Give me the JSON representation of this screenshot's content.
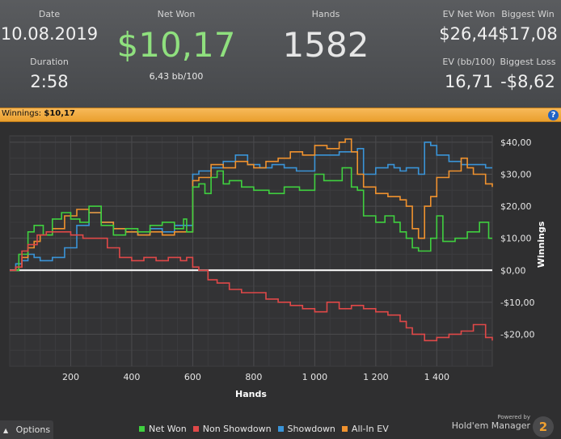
{
  "header": {
    "date_label": "Date",
    "date_value": "10.08.2019",
    "duration_label": "Duration",
    "duration_value": "2:58",
    "net_won_label": "Net Won",
    "net_won_value": "$10,17",
    "net_won_rate": "6,43 bb/100",
    "hands_label": "Hands",
    "hands_value": "1582",
    "ev_net_won_label": "EV Net Won",
    "ev_net_won_value": "$26,44",
    "biggest_win_label": "Biggest Win",
    "biggest_win_value": "$17,08",
    "ev_bb_label": "EV (bb/100)",
    "ev_bb_value": "16,71",
    "biggest_loss_label": "Biggest Loss",
    "biggest_loss_value": "-$8,62"
  },
  "winnings_bar": {
    "label": "Winnings:",
    "value": "$10,17",
    "help_icon": "?"
  },
  "footer": {
    "options_label": "Options",
    "options_icon": "chevron-up-icon",
    "powered_by": "Powered by",
    "brand": "Hold'em Manager",
    "logo_text": "2"
  },
  "colors": {
    "net_won": "#3fd03f",
    "non_showdown": "#e04848",
    "showdown": "#3a94d8",
    "all_in_ev": "#f0922e",
    "net_won_text": "#8fe07e",
    "zero_line": "#ffffff"
  },
  "chart_data": {
    "type": "line",
    "xlabel": "Hands",
    "ylabel": "Winnings",
    "xlim": [
      0,
      1582
    ],
    "ylim": [
      -30,
      42
    ],
    "xticks": [
      200,
      400,
      600,
      800,
      1000,
      1200,
      1400
    ],
    "xtick_labels": [
      "200",
      "400",
      "600",
      "800",
      "1 000",
      "1 200",
      "1 400"
    ],
    "yticks": [
      40,
      30,
      20,
      10,
      0,
      -10,
      -20
    ],
    "ytick_labels": [
      "$40,00",
      "$30,00",
      "$20,00",
      "$10,00",
      "$0,00",
      "-$10,00",
      "-$20,00"
    ],
    "grid": true,
    "legend_position": "bottom",
    "series": [
      {
        "name": "Net Won",
        "x": [
          0,
          30,
          60,
          80,
          110,
          140,
          170,
          200,
          230,
          260,
          300,
          340,
          380,
          420,
          460,
          500,
          540,
          570,
          580,
          600,
          620,
          640,
          660,
          680,
          700,
          720,
          760,
          800,
          850,
          900,
          950,
          1000,
          1030,
          1060,
          1090,
          1120,
          1140,
          1160,
          1200,
          1230,
          1260,
          1280,
          1300,
          1320,
          1340,
          1360,
          1380,
          1400,
          1420,
          1460,
          1500,
          1540,
          1570,
          1582
        ],
        "y": [
          0,
          5,
          12,
          14,
          11,
          16,
          18,
          16,
          15,
          20,
          14,
          11,
          13,
          12,
          14,
          15,
          13,
          16,
          12,
          26,
          27,
          24,
          29,
          31,
          27,
          28,
          26,
          25,
          24,
          26,
          25,
          30,
          28,
          28,
          32,
          26,
          25,
          17,
          15,
          17,
          15,
          12,
          10,
          7,
          6,
          6,
          10,
          17,
          9,
          10,
          12,
          15,
          10,
          10
        ]
      },
      {
        "name": "Non Showdown",
        "x": [
          0,
          20,
          40,
          60,
          90,
          120,
          160,
          200,
          240,
          280,
          320,
          360,
          400,
          440,
          480,
          520,
          560,
          580,
          600,
          620,
          650,
          680,
          720,
          760,
          800,
          840,
          880,
          920,
          960,
          1000,
          1040,
          1080,
          1120,
          1160,
          1200,
          1240,
          1280,
          1300,
          1320,
          1360,
          1400,
          1440,
          1480,
          1500,
          1520,
          1560,
          1582
        ],
        "y": [
          0,
          1,
          6,
          8,
          11,
          12,
          12,
          11,
          10,
          10,
          7,
          4,
          3,
          4,
          3,
          4,
          3,
          4,
          1,
          0,
          -3,
          -4,
          -6,
          -7,
          -7,
          -9,
          -10,
          -11,
          -12,
          -13,
          -10,
          -12,
          -11,
          -12,
          -13,
          -14,
          -16,
          -18,
          -20,
          -22,
          -21,
          -20,
          -19,
          -19,
          -17,
          -21,
          -22
        ]
      },
      {
        "name": "Showdown",
        "x": [
          0,
          20,
          40,
          60,
          80,
          100,
          140,
          180,
          220,
          260,
          300,
          340,
          380,
          420,
          460,
          500,
          540,
          580,
          600,
          620,
          660,
          700,
          740,
          780,
          820,
          860,
          900,
          940,
          980,
          1000,
          1040,
          1080,
          1120,
          1140,
          1160,
          1200,
          1240,
          1260,
          1280,
          1300,
          1320,
          1340,
          1360,
          1380,
          1400,
          1440,
          1480,
          1520,
          1560,
          1582
        ],
        "y": [
          0,
          2,
          3,
          5,
          4,
          3,
          4,
          7,
          14,
          18,
          15,
          13,
          12,
          11,
          13,
          12,
          14,
          14,
          30,
          31,
          32,
          34,
          36,
          33,
          32,
          33,
          32,
          31,
          31,
          36,
          36,
          37,
          37,
          38,
          30,
          32,
          33,
          32,
          31,
          32,
          32,
          30,
          40,
          39,
          36,
          34,
          33,
          33,
          32,
          32
        ]
      },
      {
        "name": "All-In EV",
        "x": [
          0,
          20,
          40,
          60,
          80,
          100,
          140,
          180,
          220,
          260,
          300,
          340,
          380,
          420,
          460,
          500,
          540,
          580,
          600,
          620,
          660,
          700,
          740,
          780,
          800,
          840,
          880,
          920,
          960,
          1000,
          1040,
          1080,
          1100,
          1120,
          1140,
          1160,
          1200,
          1240,
          1280,
          1300,
          1320,
          1340,
          1360,
          1380,
          1400,
          1440,
          1480,
          1500,
          1520,
          1560,
          1582
        ],
        "y": [
          0,
          1,
          4,
          7,
          9,
          11,
          13,
          17,
          19,
          18,
          15,
          13,
          12,
          11,
          12,
          11,
          12,
          12,
          28,
          29,
          33,
          32,
          34,
          33,
          32,
          34,
          35,
          37,
          36,
          39,
          38,
          40,
          41,
          37,
          30,
          26,
          24,
          23,
          22,
          20,
          13,
          10,
          20,
          23,
          29,
          31,
          35,
          32,
          30,
          27,
          26
        ]
      }
    ]
  }
}
